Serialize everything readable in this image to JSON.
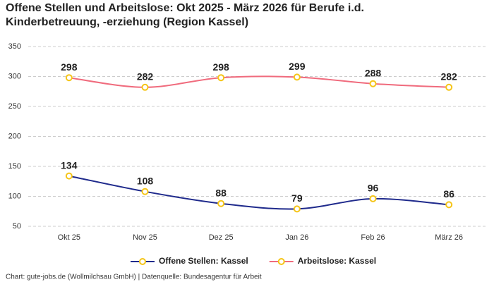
{
  "chart_data": {
    "type": "line",
    "title": "Offene Stellen und Arbeitslose: Okt 2025 - März 2026 für Berufe i.d. Kinderbetreuung, -erziehung (Region Kassel)",
    "categories": [
      "Okt 25",
      "Nov 25",
      "Dez 25",
      "Jan 26",
      "Feb 26",
      "März 26"
    ],
    "series": [
      {
        "name": "Offene Stellen: Kassel",
        "color": "#1f2a8c",
        "values": [
          134,
          108,
          88,
          79,
          96,
          86
        ]
      },
      {
        "name": "Arbeitslose: Kassel",
        "color": "#f06b7d",
        "values": [
          298,
          282,
          298,
          299,
          288,
          282
        ]
      }
    ],
    "marker_color": "#f5c518",
    "ylim": [
      50,
      350
    ],
    "yticks": [
      50,
      100,
      150,
      200,
      250,
      300,
      350
    ],
    "grid": true,
    "legend": "bottom",
    "source": "Chart: gute-jobs.de (Wollmilchsau GmbH) | Datenquelle: Bundesagentur für Arbeit"
  }
}
